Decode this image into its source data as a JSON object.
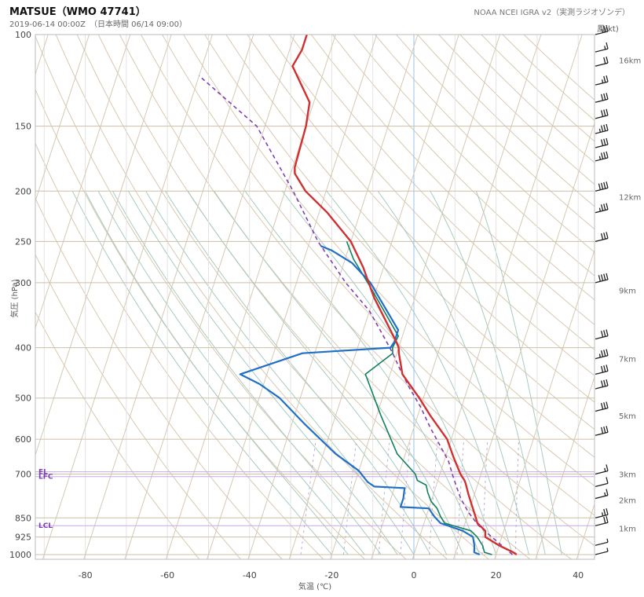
{
  "header": {
    "title": "MATSUE（WMO 47741）",
    "subtitle": "2019-06-14 00:00Z　（日本時間 06/14 09:00）",
    "source": "NOAA NCEI IGRA v2（実測ラジオゾンデ）"
  },
  "chart_data": {
    "type": "line",
    "chart_kind": "skew-T log-p sounding",
    "xlabel": "気温 (℃)",
    "ylabel": "気圧 (hPa)",
    "wind_label": "風(kt)",
    "x_ticks": [
      -80,
      -60,
      -40,
      -20,
      0,
      20,
      40
    ],
    "y_ticks": [
      100,
      150,
      200,
      250,
      300,
      400,
      500,
      600,
      700,
      850,
      925,
      1000
    ],
    "ylim": [
      1000,
      100
    ],
    "y_scale": "log",
    "altitude_labels": [
      {
        "p": 112,
        "label": "16km"
      },
      {
        "p": 205,
        "label": "12km"
      },
      {
        "p": 310,
        "label": "9km"
      },
      {
        "p": 420,
        "label": "7km"
      },
      {
        "p": 540,
        "label": "5km"
      },
      {
        "p": 700,
        "label": "3km"
      },
      {
        "p": 785,
        "label": "2km"
      },
      {
        "p": 890,
        "label": "1km"
      }
    ],
    "levels": [
      {
        "label": "EL",
        "p": 693
      },
      {
        "label": "LFC",
        "p": 708
      },
      {
        "label": "LCL",
        "p": 880
      }
    ],
    "series": [
      {
        "key": "temperature",
        "color": "#d03030",
        "style": "solid",
        "points": [
          [
            25,
            1000
          ],
          [
            24,
            990
          ],
          [
            20,
            960
          ],
          [
            16,
            925
          ],
          [
            15.5,
            900
          ],
          [
            13,
            870
          ],
          [
            12,
            845
          ],
          [
            10.5,
            810
          ],
          [
            8.5,
            765
          ],
          [
            7,
            730
          ],
          [
            6.5,
            720
          ],
          [
            5,
            700
          ],
          [
            2,
            650
          ],
          [
            -1,
            600
          ],
          [
            -7,
            540
          ],
          [
            -11,
            500
          ],
          [
            -17,
            450
          ],
          [
            -19.5,
            410
          ],
          [
            -20,
            400
          ],
          [
            -21,
            390
          ],
          [
            -30,
            320
          ],
          [
            -35,
            280
          ],
          [
            -40,
            250
          ],
          [
            -48,
            220
          ],
          [
            -55,
            200
          ],
          [
            -59,
            185
          ],
          [
            -59.5,
            180
          ],
          [
            -60,
            150
          ],
          [
            -61,
            135
          ],
          [
            -68,
            115
          ],
          [
            -67,
            107
          ],
          [
            -67,
            100
          ]
        ]
      },
      {
        "key": "dewpoint",
        "color": "#2070c8",
        "style": "solid",
        "points": [
          [
            16,
            1000
          ],
          [
            14.5,
            990
          ],
          [
            14,
            960
          ],
          [
            13,
            925
          ],
          [
            10,
            900
          ],
          [
            4,
            870
          ],
          [
            2,
            845
          ],
          [
            0,
            815
          ],
          [
            -7,
            810
          ],
          [
            -7,
            780
          ],
          [
            -7.5,
            745
          ],
          [
            -15,
            740
          ],
          [
            -17,
            725
          ],
          [
            -20,
            690
          ],
          [
            -27,
            640
          ],
          [
            -37,
            560
          ],
          [
            -45,
            500
          ],
          [
            -51,
            470
          ],
          [
            -56.5,
            450
          ],
          [
            -43,
            410
          ],
          [
            -22,
            400
          ],
          [
            -21.5,
            390
          ],
          [
            -21.5,
            370
          ],
          [
            -32,
            300
          ],
          [
            -38,
            275
          ],
          [
            -44,
            260
          ],
          [
            -47,
            255
          ]
        ]
      },
      {
        "key": "wet-bulb",
        "color": "#108060",
        "style": "solid",
        "points": [
          [
            19,
            1000
          ],
          [
            17,
            990
          ],
          [
            16,
            960
          ],
          [
            14,
            925
          ],
          [
            12,
            900
          ],
          [
            5,
            870
          ],
          [
            3.5,
            845
          ],
          [
            2,
            815
          ],
          [
            0,
            790
          ],
          [
            -1.5,
            760
          ],
          [
            -2.5,
            735
          ],
          [
            -5,
            720
          ],
          [
            -6,
            700
          ],
          [
            -12,
            640
          ],
          [
            -19,
            540
          ],
          [
            -26,
            450
          ],
          [
            -21,
            410
          ],
          [
            -21.5,
            400
          ],
          [
            -21,
            380
          ],
          [
            -31,
            310
          ],
          [
            -38,
            270
          ],
          [
            -41,
            250
          ]
        ]
      },
      {
        "key": "parcel",
        "color": "#8040b0",
        "style": "dashed",
        "points": [
          [
            24,
            1000
          ],
          [
            18,
            930
          ],
          [
            13.5,
            880
          ],
          [
            10,
            830
          ],
          [
            7,
            780
          ],
          [
            5,
            740
          ],
          [
            3,
            700
          ],
          [
            1,
            660
          ],
          [
            -2,
            620
          ],
          [
            -6,
            570
          ],
          [
            -10,
            520
          ],
          [
            -14,
            480
          ],
          [
            -18,
            440
          ],
          [
            -21,
            410
          ],
          [
            -24,
            385
          ],
          [
            -30,
            340
          ],
          [
            -38,
            300
          ],
          [
            -48,
            250
          ],
          [
            -58,
            200
          ],
          [
            -72,
            150
          ],
          [
            -90,
            120
          ]
        ]
      }
    ],
    "wind_barbs": [
      {
        "p": 1000,
        "kt": 5
      },
      {
        "p": 960,
        "kt": 5
      },
      {
        "p": 880,
        "kt": 20
      },
      {
        "p": 850,
        "kt": 25
      },
      {
        "p": 780,
        "kt": 15
      },
      {
        "p": 740,
        "kt": 10
      },
      {
        "p": 700,
        "kt": 15
      },
      {
        "p": 590,
        "kt": 30
      },
      {
        "p": 530,
        "kt": 30
      },
      {
        "p": 480,
        "kt": 30
      },
      {
        "p": 450,
        "kt": 30
      },
      {
        "p": 420,
        "kt": 35
      },
      {
        "p": 385,
        "kt": 30
      },
      {
        "p": 300,
        "kt": 40
      },
      {
        "p": 250,
        "kt": 30
      },
      {
        "p": 220,
        "kt": 35
      },
      {
        "p": 200,
        "kt": 40
      },
      {
        "p": 175,
        "kt": 35
      },
      {
        "p": 165,
        "kt": 30
      },
      {
        "p": 155,
        "kt": 35
      },
      {
        "p": 145,
        "kt": 30
      },
      {
        "p": 135,
        "kt": 30
      },
      {
        "p": 125,
        "kt": 25
      },
      {
        "p": 115,
        "kt": 20
      },
      {
        "p": 108,
        "kt": 15
      },
      {
        "p": 100,
        "kt": 25
      }
    ]
  }
}
